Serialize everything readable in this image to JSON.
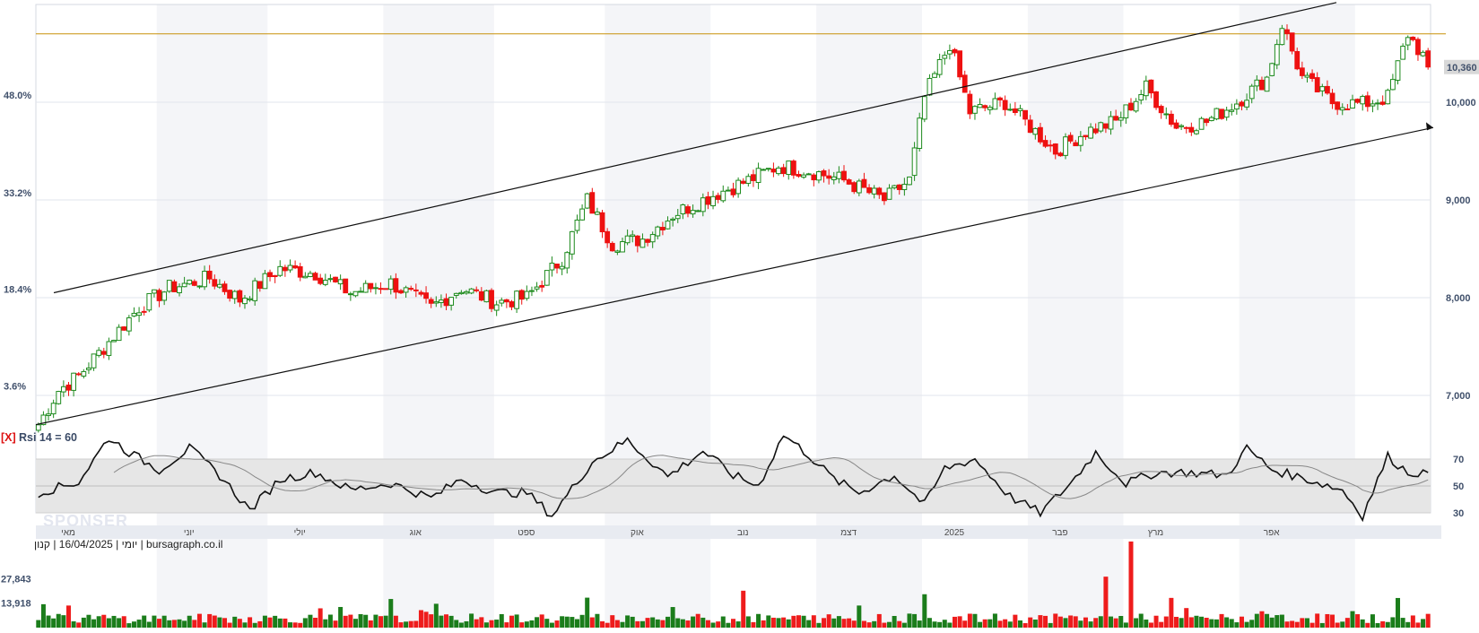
{
  "colors": {
    "up": "#1d8a1d",
    "down": "#ee1111",
    "volume_up": "#1b7d1b",
    "volume_down": "#ee1c1c",
    "threshold_line": "#c8920a",
    "band_fill": "#e6e6e6",
    "shade_fill": "#f4f5f8",
    "rsi_line": "#111111",
    "rsi_avg": "#888888",
    "axis_text": "#40506b",
    "month_bar": "#e8ebf1"
  },
  "indicator": {
    "close_symbol": "[X]",
    "rsi_title": "Rsi 14 = 60"
  },
  "footer": {
    "info": "יומי | 16/04/2025 | קנון | bursagraph.co.il"
  },
  "watermark": "SPONSER",
  "chart_data": {
    "type": "candlestick",
    "title": "",
    "price_axis": {
      "ticks": [
        7000,
        8000,
        9000,
        10000
      ],
      "tick_labels": [
        "7,000",
        "8,000",
        "9,000",
        "10,000"
      ],
      "range": [
        6660,
        11000
      ],
      "last_price": 10360,
      "last_price_label": "10,360",
      "threshold_line": 10700
    },
    "percent_axis": {
      "tick_labels": [
        "3.6%",
        "18.4%",
        "33.2%",
        "48.0%"
      ]
    },
    "months": [
      "מאי",
      "יוני",
      "יולי",
      "אוג",
      "ספט",
      "אוק",
      "נוב",
      "דצמ",
      "2025",
      "פבר",
      "מרץ",
      "אפר"
    ],
    "shaded_months": [
      "יוני",
      "אוג",
      "אוק",
      "דצמ",
      "פבר",
      "אפר"
    ],
    "price_keypoints": [
      [
        0,
        6700
      ],
      [
        4,
        7050
      ],
      [
        8,
        7200
      ],
      [
        14,
        7550
      ],
      [
        20,
        7900
      ],
      [
        26,
        8100
      ],
      [
        34,
        8200
      ],
      [
        40,
        7980
      ],
      [
        48,
        8300
      ],
      [
        55,
        8250
      ],
      [
        62,
        8050
      ],
      [
        70,
        8150
      ],
      [
        78,
        7900
      ],
      [
        84,
        8100
      ],
      [
        91,
        7950
      ],
      [
        97,
        8000
      ],
      [
        104,
        8400
      ],
      [
        109,
        9000
      ],
      [
        114,
        8550
      ],
      [
        120,
        8600
      ],
      [
        126,
        8850
      ],
      [
        134,
        9050
      ],
      [
        141,
        9200
      ],
      [
        147,
        9350
      ],
      [
        153,
        9300
      ],
      [
        160,
        9200
      ],
      [
        168,
        9000
      ],
      [
        173,
        9200
      ],
      [
        176,
        10050
      ],
      [
        181,
        10600
      ],
      [
        185,
        9900
      ],
      [
        192,
        10000
      ],
      [
        198,
        9700
      ],
      [
        202,
        9500
      ],
      [
        208,
        9700
      ],
      [
        214,
        9800
      ],
      [
        220,
        10150
      ],
      [
        226,
        9750
      ],
      [
        232,
        9800
      ],
      [
        238,
        10000
      ],
      [
        244,
        10250
      ],
      [
        247,
        10800
      ],
      [
        251,
        10250
      ],
      [
        257,
        10000
      ],
      [
        263,
        9980
      ],
      [
        268,
        10050
      ],
      [
        272,
        10700
      ],
      [
        276,
        10400
      ]
    ],
    "trend_channel": {
      "upper_start": [
        0,
        8000
      ],
      "upper_end": [
        276,
        11050
      ],
      "lower_start": [
        0,
        6700
      ],
      "lower_end": [
        276,
        9740
      ]
    },
    "rsi": {
      "levels": [
        30,
        50,
        70
      ],
      "level_labels": [
        "30",
        "50",
        "70"
      ],
      "current": 60,
      "keypoints": [
        [
          0,
          45
        ],
        [
          8,
          53
        ],
        [
          14,
          86
        ],
        [
          18,
          75
        ],
        [
          24,
          62
        ],
        [
          30,
          78
        ],
        [
          36,
          58
        ],
        [
          42,
          32
        ],
        [
          48,
          55
        ],
        [
          55,
          60
        ],
        [
          62,
          47
        ],
        [
          70,
          52
        ],
        [
          78,
          41
        ],
        [
          84,
          55
        ],
        [
          91,
          45
        ],
        [
          97,
          45
        ],
        [
          102,
          28
        ],
        [
          110,
          68
        ],
        [
          117,
          84
        ],
        [
          125,
          57
        ],
        [
          132,
          76
        ],
        [
          138,
          58
        ],
        [
          143,
          50
        ],
        [
          148,
          88
        ],
        [
          153,
          73
        ],
        [
          158,
          55
        ],
        [
          163,
          45
        ],
        [
          170,
          58
        ],
        [
          176,
          36
        ],
        [
          180,
          63
        ],
        [
          186,
          70
        ],
        [
          193,
          42
        ],
        [
          199,
          30
        ],
        [
          205,
          52
        ],
        [
          210,
          75
        ],
        [
          216,
          52
        ],
        [
          222,
          60
        ],
        [
          228,
          60
        ],
        [
          236,
          58
        ],
        [
          240,
          78
        ],
        [
          245,
          62
        ],
        [
          252,
          55
        ],
        [
          259,
          47
        ],
        [
          263,
          28
        ],
        [
          268,
          72
        ],
        [
          272,
          60
        ]
      ]
    },
    "volume": {
      "tick_labels": [
        "13,918",
        "27,843"
      ],
      "ticks": [
        13918,
        27843
      ]
    }
  }
}
